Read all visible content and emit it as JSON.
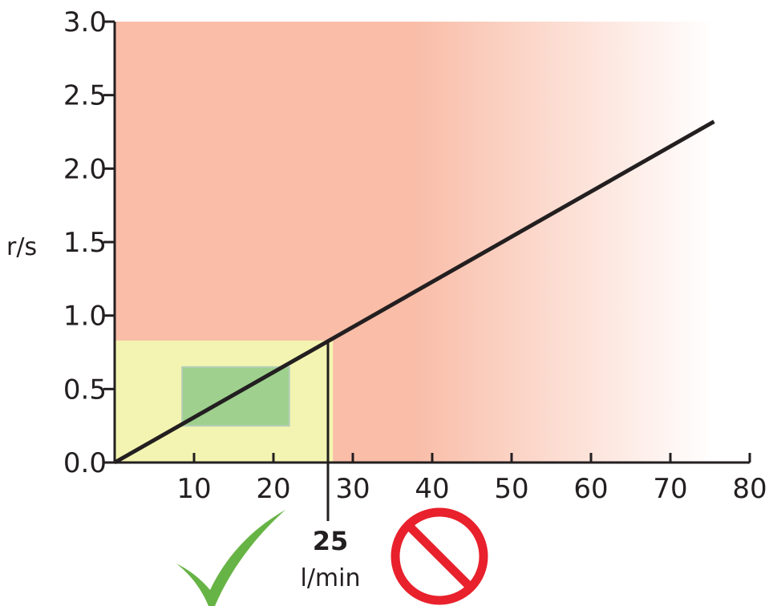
{
  "chart_data": {
    "type": "line",
    "ylabel": "r/s",
    "xlim": [
      0,
      80
    ],
    "ylim": [
      0,
      3.0
    ],
    "x_ticks": [
      10,
      20,
      30,
      40,
      50,
      60,
      70,
      80
    ],
    "x_tick_labels": [
      "10",
      "20",
      "30",
      "40",
      "50",
      "60",
      "70",
      "80"
    ],
    "y_ticks": [
      0,
      0.5,
      1.0,
      1.5,
      2.0,
      2.5,
      3.0
    ],
    "y_tick_labels": [
      "0.0",
      "0.5",
      "1.0",
      "1.5",
      "2.0",
      "2.5",
      "3.0"
    ],
    "grid": false,
    "series": [
      {
        "x": [
          0,
          75.5
        ],
        "y": [
          0,
          2.32
        ]
      }
    ],
    "regions": {
      "acceptable": {
        "x": [
          0,
          27.5
        ],
        "y": [
          0,
          0.83
        ]
      },
      "optimal": {
        "x": [
          8.5,
          22
        ],
        "y": [
          0.25,
          0.65
        ]
      },
      "excess": {
        "x": [
          0,
          80
        ],
        "y": [
          0,
          3.0
        ]
      }
    },
    "limit": {
      "x": 25,
      "value_label": "25",
      "unit_label": "l/min"
    }
  },
  "colors": {
    "excess_region": "#f9bda8",
    "acceptable_region": "#f3f4b1",
    "optimal_region": "#9fd08e",
    "optimal_border": "#b3cfb6",
    "line": "#231f20",
    "axis": "#231f20",
    "check": "#67b446",
    "prohibited": "#e8212c"
  },
  "icons": {
    "ok": "checkmark-icon",
    "not_ok": "prohibited-icon"
  }
}
